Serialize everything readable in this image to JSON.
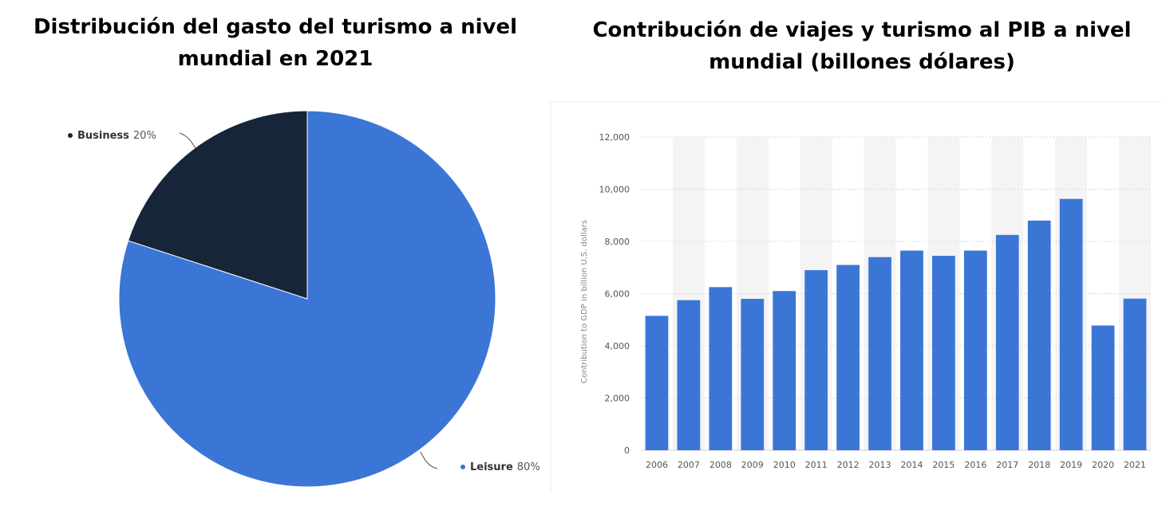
{
  "titles": {
    "pie": "Distribución del gasto del turismo a nivel mundial en 2021",
    "bar": "Contribución de viajes y turismo al PIB a nivel mundial (billones dólares)"
  },
  "colors": {
    "business": "#172538",
    "leisure": "#3b76d6",
    "bar": "#3b76d6",
    "band": "#f4f4f4",
    "grid": "#d8d8d8"
  },
  "chart_data": [
    {
      "type": "pie",
      "title": "Distribución del gasto del turismo a nivel mundial en 2021",
      "slices": [
        {
          "name": "Business",
          "value": 20,
          "label": "20%"
        },
        {
          "name": "Leisure",
          "value": 80,
          "label": "80%"
        }
      ]
    },
    {
      "type": "bar",
      "title": "Contribución de viajes y turismo al PIB a nivel mundial (billones dólares)",
      "ylabel": "Contribution to GDP in billion U.S. dollars",
      "xlabel": "",
      "ylim": [
        0,
        12000
      ],
      "yticks": [
        0,
        2000,
        4000,
        6000,
        8000,
        10000,
        12000
      ],
      "ytick_labels": [
        "0",
        "2,000",
        "4,000",
        "6,000",
        "8,000",
        "10,000",
        "12,000"
      ],
      "categories": [
        "2006",
        "2007",
        "2008",
        "2009",
        "2010",
        "2011",
        "2012",
        "2013",
        "2014",
        "2015",
        "2016",
        "2017",
        "2018",
        "2019",
        "2020",
        "2021"
      ],
      "values": [
        5150,
        5750,
        6250,
        5800,
        6100,
        6900,
        7100,
        7400,
        7650,
        7450,
        7650,
        8250,
        8800,
        9630,
        4780,
        5810
      ],
      "grid": true
    }
  ]
}
